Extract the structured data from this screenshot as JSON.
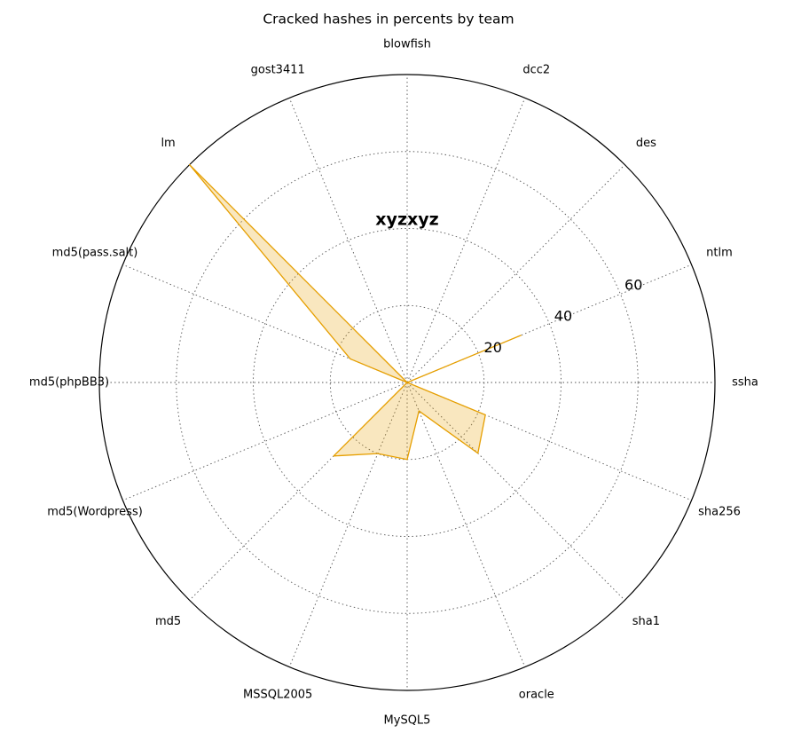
{
  "chart_data": {
    "type": "radar",
    "title": "Cracked hashes in percents by team",
    "subtitle": "xyzxyz",
    "categories": [
      "blowfish",
      "dcc2",
      "des",
      "ntlm",
      "ssha",
      "sha256",
      "sha1",
      "oracle",
      "MySQL5",
      "MSSQL2005",
      "md5",
      "md5(Wordpress)",
      "md5(phpBB3)",
      "md5(pass.salt)",
      "lm",
      "gost3411"
    ],
    "values": [
      0,
      0,
      0,
      32,
      0,
      22,
      26,
      8,
      20,
      20,
      27,
      0,
      0,
      16,
      80,
      0
    ],
    "color": "#e69f00",
    "ylim": [
      0,
      80
    ],
    "yticks": [
      20,
      40,
      60
    ],
    "grid": true
  }
}
